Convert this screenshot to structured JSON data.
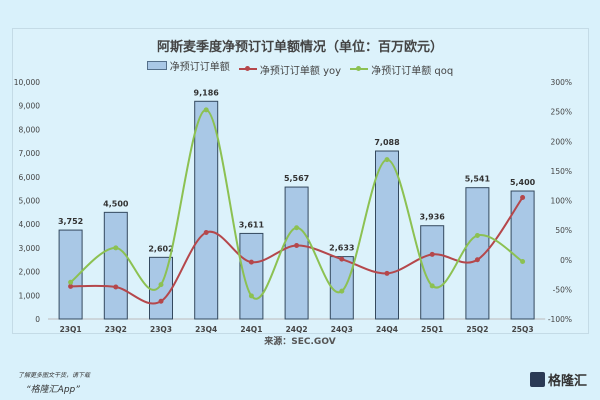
{
  "chart_data": {
    "type": "bar",
    "title": "阿斯麦季度净预订订单额情况（单位：百万欧元）",
    "source": "来源：SEC.GOV",
    "categories": [
      "23Q1",
      "23Q2",
      "23Q3",
      "23Q4",
      "24Q1",
      "24Q2",
      "24Q3",
      "24Q4",
      "25Q1",
      "25Q2",
      "25Q3"
    ],
    "series": [
      {
        "name": "净预订订单额",
        "type": "bar",
        "axis": "left",
        "color": "#a9c8e6",
        "values": [
          3752,
          4500,
          2602,
          9186,
          3611,
          5567,
          2633,
          7088,
          3936,
          5541,
          5400
        ],
        "labels": [
          "3,752",
          "4,500",
          "2,602",
          "9,186",
          "3,611",
          "5,567",
          "2,633",
          "7,088",
          "3,936",
          "5,541",
          "5,400"
        ]
      },
      {
        "name": "净预订订单额 yoy",
        "type": "line",
        "axis": "right",
        "color": "#b5474b",
        "values": [
          -45,
          -46,
          -70,
          46,
          -4,
          24,
          1,
          -23,
          9,
          0,
          105
        ]
      },
      {
        "name": "净预订订单额 qoq",
        "type": "line",
        "axis": "right",
        "color": "#8cc152",
        "values": [
          -38,
          20,
          -42,
          253,
          -61,
          54,
          -53,
          169,
          -44,
          41,
          -3
        ]
      }
    ],
    "left_axis": {
      "ylim": [
        0,
        10000
      ],
      "ticks": [
        "0",
        "1,000",
        "2,000",
        "3,000",
        "4,000",
        "5,000",
        "6,000",
        "7,000",
        "8,000",
        "9,000",
        "10,000"
      ]
    },
    "right_axis": {
      "ylim": [
        -100,
        300
      ],
      "ticks": [
        "-100%",
        "-50%",
        "0%",
        "50%",
        "100%",
        "150%",
        "200%",
        "250%",
        "300%"
      ]
    },
    "legend_position": "top"
  },
  "footer": {
    "line1": "了解更多图文干货，请下载",
    "line2": "“格隆汇App”",
    "logo": "格隆汇"
  }
}
